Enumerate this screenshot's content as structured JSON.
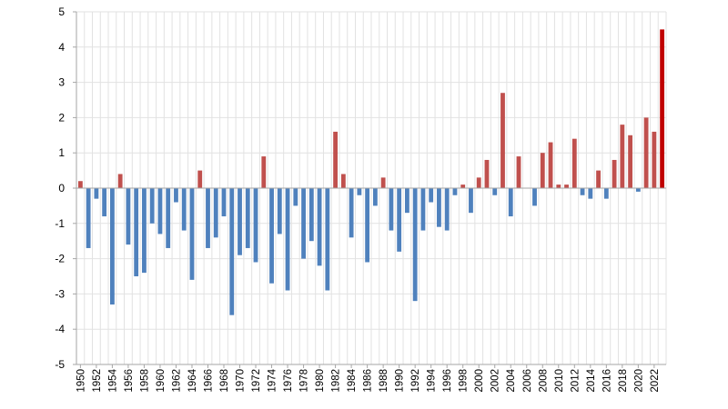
{
  "chart_data": {
    "type": "bar",
    "title": "",
    "xlabel": "",
    "ylabel": "",
    "ylim": [
      -5,
      5
    ],
    "yticks": [
      "5",
      "4",
      "3",
      "2",
      "1",
      "0",
      "-1",
      "-2",
      "-3",
      "-4",
      "-5"
    ],
    "grid": true,
    "colors": {
      "positive": "#c0504d",
      "negative": "#4f81bd",
      "highlight": "#c00000",
      "grid": "#e2e2e2",
      "axis": "#a6a6a6"
    },
    "categories": [
      "1950",
      "1951",
      "1952",
      "1953",
      "1954",
      "1955",
      "1956",
      "1957",
      "1958",
      "1959",
      "1960",
      "1961",
      "1962",
      "1963",
      "1964",
      "1965",
      "1966",
      "1967",
      "1968",
      "1969",
      "1970",
      "1971",
      "1972",
      "1973",
      "1974",
      "1975",
      "1976",
      "1977",
      "1978",
      "1979",
      "1980",
      "1981",
      "1982",
      "1983",
      "1984",
      "1985",
      "1986",
      "1987",
      "1988",
      "1989",
      "1990",
      "1991",
      "1992",
      "1993",
      "1994",
      "1995",
      "1996",
      "1997",
      "1998",
      "1999",
      "2000",
      "2001",
      "2002",
      "2003",
      "2004",
      "2005",
      "2006",
      "2007",
      "2008",
      "2009",
      "2010",
      "2011",
      "2012",
      "2013",
      "2014",
      "2015",
      "2016",
      "2017",
      "2018",
      "2019",
      "2020",
      "2021",
      "2022",
      "2023"
    ],
    "x_tick_labels": [
      "1950",
      "1952",
      "1954",
      "1956",
      "1958",
      "1960",
      "1962",
      "1964",
      "1966",
      "1968",
      "1970",
      "1972",
      "1974",
      "1976",
      "1978",
      "1980",
      "1982",
      "1984",
      "1986",
      "1988",
      "1990",
      "1992",
      "1994",
      "1996",
      "1998",
      "2000",
      "2002",
      "2004",
      "2006",
      "2008",
      "2010",
      "2012",
      "2014",
      "2016",
      "2018",
      "2020",
      "2022"
    ],
    "values": [
      0.2,
      -1.7,
      -0.3,
      -0.8,
      -3.3,
      0.4,
      -1.6,
      -2.5,
      -2.4,
      -1.0,
      -1.3,
      -1.7,
      -0.4,
      -1.2,
      -2.6,
      0.5,
      -1.7,
      -1.4,
      -0.8,
      -3.6,
      -1.9,
      -1.7,
      -2.1,
      0.9,
      -2.7,
      -1.3,
      -2.9,
      -0.5,
      -2.0,
      -1.5,
      -2.2,
      -2.9,
      1.6,
      0.4,
      -1.4,
      -0.2,
      -2.1,
      -0.5,
      0.3,
      -1.2,
      -1.8,
      -0.7,
      -3.2,
      -1.2,
      -0.4,
      -1.1,
      -1.2,
      -0.2,
      0.1,
      -0.7,
      0.3,
      0.8,
      -0.2,
      2.7,
      -0.8,
      0.9,
      0.0,
      -0.5,
      1.0,
      1.3,
      0.1,
      0.1,
      1.4,
      -0.2,
      -0.3,
      0.5,
      -0.3,
      0.8,
      1.8,
      1.5,
      -0.1,
      2.0,
      1.6,
      4.5
    ],
    "highlight_category": "2023"
  }
}
